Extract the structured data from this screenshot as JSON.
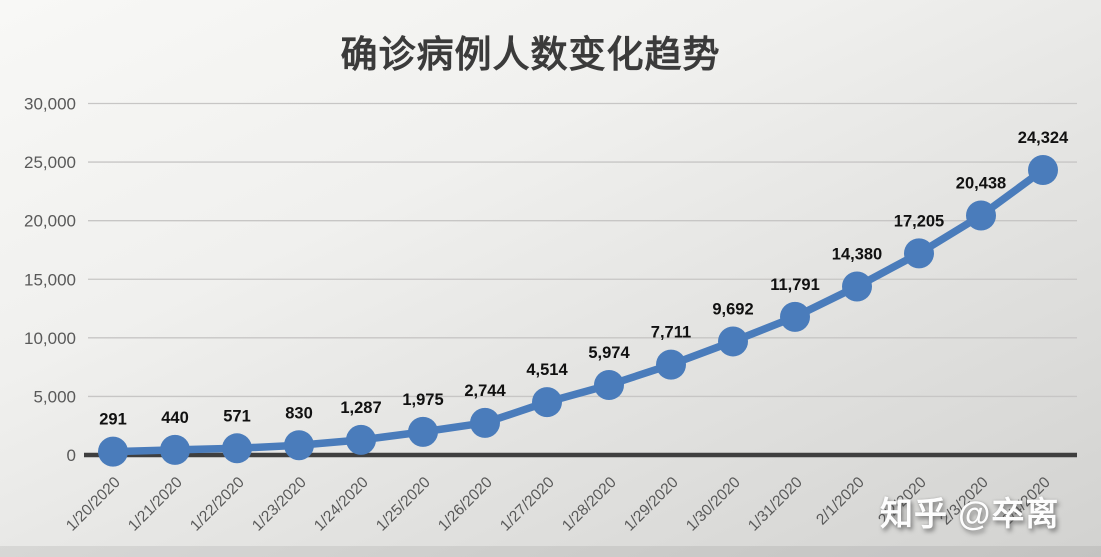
{
  "title": "确诊病例人数变化趋势",
  "watermark": "知乎 @卒离",
  "colors": {
    "series": "#4a7cbb",
    "axis_line": "#3f3f3f",
    "gridline": "#c7c6c5",
    "tick_text": "#595959",
    "data_label_text": "#111111",
    "title_text": "#3b3b3b"
  },
  "chart_data": {
    "type": "line",
    "title": "确诊病例人数变化趋势",
    "x": [
      "1/20/2020",
      "1/21/2020",
      "1/22/2020",
      "1/23/2020",
      "1/24/2020",
      "1/25/2020",
      "1/26/2020",
      "1/27/2020",
      "1/28/2020",
      "1/29/2020",
      "1/30/2020",
      "1/31/2020",
      "2/1/2020",
      "2/2/2020",
      "2/3/2020",
      "2/4/2020"
    ],
    "values": [
      291,
      440,
      571,
      830,
      1287,
      1975,
      2744,
      4514,
      5974,
      7711,
      9692,
      11791,
      14380,
      17205,
      20438,
      24324
    ],
    "value_labels": [
      "291",
      "440",
      "571",
      "830",
      "1,287",
      "1,975",
      "2,744",
      "4,514",
      "5,974",
      "7,711",
      "9,692",
      "11,791",
      "14,380",
      "17,205",
      "20,438",
      "24,324"
    ],
    "xlabel": "",
    "ylabel": "",
    "ylim": [
      0,
      30000
    ],
    "yticks": [
      0,
      5000,
      10000,
      15000,
      20000,
      25000,
      30000
    ],
    "ytick_labels": [
      "0",
      "5,000",
      "10,000",
      "15,000",
      "20,000",
      "25,000",
      "30,000"
    ],
    "grid": true,
    "legend": false,
    "marker": "circle",
    "x_tick_rotation_deg": 45
  }
}
